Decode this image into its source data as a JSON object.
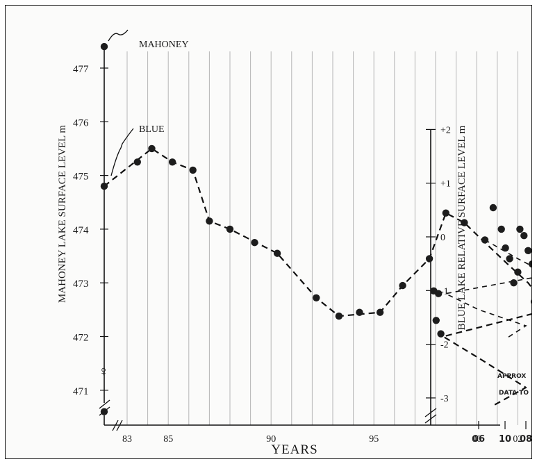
{
  "chart_data": {
    "type": "scatter",
    "xlabel": "YEARS",
    "ylabel_left": "MAHONEY LAKE SURFACE LEVEL m",
    "ylabel_right": "BLUE LAKE RELATIVE SURFACE LEVEL m",
    "x_ticks": [
      "83",
      "85",
      "90",
      "95",
      "00",
      "02",
      "04"
    ],
    "x_ticks_projection": [
      "06",
      "08",
      "10"
    ],
    "ylim_left": [
      470.9,
      477.6
    ],
    "y_ticks_left": [
      "471",
      "472",
      "473",
      "474",
      "475",
      "476",
      "477"
    ],
    "y_ticks_right": [
      "+2",
      "+1",
      "0",
      "-1",
      "-2",
      "-3"
    ],
    "grid": "vertical lines at each year",
    "annotations": [
      "MAHONEY",
      "BLUE",
      "♀",
      "APPROX",
      "DATA TO"
    ],
    "series": [
      {
        "name": "MAHONEY",
        "points": [
          [
            1982.5,
            477.4
          ],
          [
            1982.5,
            470.6
          ]
        ]
      },
      {
        "name": "BLUE",
        "points": [
          [
            1982.5,
            474.8
          ],
          [
            1983.5,
            475.25
          ],
          [
            1984.2,
            475.5
          ],
          [
            1985.2,
            475.25
          ],
          [
            1986.2,
            475.1
          ],
          [
            1987.0,
            474.15
          ],
          [
            1988.0,
            474.0
          ],
          [
            1989.2,
            473.75
          ],
          [
            1990.3,
            473.55
          ],
          [
            1992.2,
            472.72
          ],
          [
            1993.3,
            472.38
          ],
          [
            1994.3,
            472.45
          ],
          [
            1995.3,
            472.45
          ],
          [
            1996.4,
            472.95
          ],
          [
            1997.7,
            473.45
          ],
          [
            1998.5,
            474.3
          ],
          [
            1999.4,
            474.12
          ],
          [
            2000.4,
            473.8
          ],
          [
            2000.8,
            474.4
          ],
          [
            2001.2,
            474.0
          ],
          [
            2001.4,
            473.65
          ],
          [
            2001.6,
            473.45
          ],
          [
            2001.8,
            473.0
          ],
          [
            2002.0,
            473.2
          ],
          [
            2002.1,
            474.0
          ],
          [
            2002.3,
            473.88
          ],
          [
            2002.5,
            473.6
          ],
          [
            2002.7,
            473.35
          ],
          [
            2002.9,
            472.75
          ],
          [
            2003.1,
            473.5
          ],
          [
            2003.3,
            473.4
          ],
          [
            2003.5,
            473.1
          ],
          [
            2003.7,
            472.65
          ],
          [
            2003.9,
            473.0
          ],
          [
            2004.1,
            472.85
          ],
          [
            2004.3,
            472.8
          ],
          [
            2002.8,
            472.65
          ],
          [
            2003.2,
            472.45
          ],
          [
            2003.6,
            472.25
          ],
          [
            2004.0,
            472.1
          ],
          [
            2004.2,
            472.3
          ],
          [
            2004.4,
            472.05
          ]
        ],
        "trend": [
          [
            1982.5,
            474.8
          ],
          [
            1984.2,
            475.5
          ],
          [
            1985.2,
            475.25
          ],
          [
            1986.2,
            475.1
          ],
          [
            1987.0,
            474.15
          ],
          [
            1988.0,
            474.0
          ],
          [
            1990.3,
            473.55
          ],
          [
            1992.2,
            472.72
          ],
          [
            1993.3,
            472.38
          ],
          [
            1995.3,
            472.45
          ],
          [
            1996.4,
            472.95
          ],
          [
            1997.7,
            473.45
          ],
          [
            1998.5,
            474.3
          ],
          [
            1999.4,
            474.12
          ],
          [
            2000.4,
            473.75
          ],
          [
            2001.5,
            473.35
          ],
          [
            2002.5,
            473.0
          ],
          [
            2003.5,
            472.5
          ],
          [
            2004.5,
            472.0
          ],
          [
            2006.0,
            471.6
          ],
          [
            2008.0,
            471.05
          ],
          [
            2009.0,
            470.7
          ]
        ],
        "trend_upper": [
          [
            2000.4,
            473.8
          ],
          [
            2002.0,
            473.45
          ],
          [
            2003.5,
            473.15
          ],
          [
            2004.6,
            472.8
          ],
          [
            2006.0,
            472.5
          ],
          [
            2008.0,
            472.2
          ],
          [
            2010.0,
            471.95
          ]
        ]
      }
    ]
  }
}
